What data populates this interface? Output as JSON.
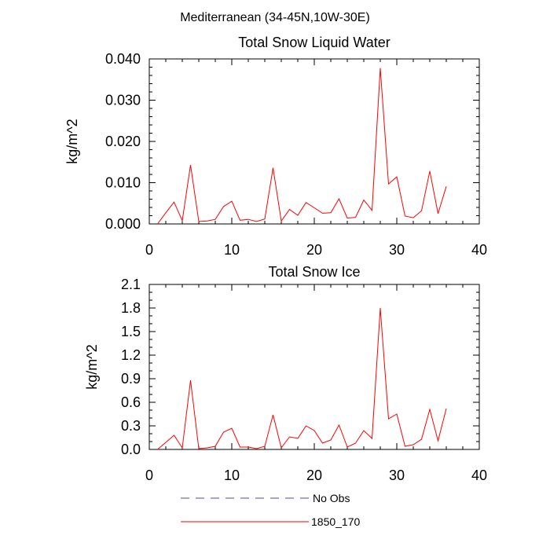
{
  "figure": {
    "title": "Mediterranean (34-45N,10W-30E)"
  },
  "chart_data": [
    {
      "type": "line",
      "title": "Total Snow Liquid Water",
      "xlabel": "",
      "ylabel": "kg/m^2",
      "xlim": [
        0,
        40
      ],
      "ylim": [
        0,
        0.04
      ],
      "x_ticks": [
        "0",
        "10",
        "20",
        "30",
        "40"
      ],
      "y_ticks": [
        "0.000",
        "0.010",
        "0.020",
        "0.030",
        "0.040"
      ],
      "grid": false,
      "series": [
        {
          "name": "1850_170",
          "color": "#ff0000",
          "x": [
            1,
            2,
            3,
            4,
            5,
            6,
            7,
            8,
            9,
            10,
            11,
            12,
            13,
            14,
            15,
            16,
            17,
            18,
            19,
            20,
            21,
            22,
            23,
            24,
            25,
            26,
            27,
            28,
            29,
            30,
            31,
            32,
            33,
            34,
            35,
            36
          ],
          "values": [
            0.0,
            0.0027,
            0.0053,
            0.0008,
            0.0143,
            0.0006,
            0.0007,
            0.0011,
            0.0042,
            0.0055,
            0.0009,
            0.0011,
            0.0006,
            0.0012,
            0.0136,
            0.0007,
            0.0035,
            0.0021,
            0.0052,
            0.0039,
            0.0026,
            0.0027,
            0.0061,
            0.0014,
            0.0016,
            0.0058,
            0.0033,
            0.0378,
            0.0097,
            0.0114,
            0.0019,
            0.0015,
            0.0032,
            0.0128,
            0.0025,
            0.0091
          ]
        }
      ]
    },
    {
      "type": "line",
      "title": "Total Snow Ice",
      "xlabel": "",
      "ylabel": "kg/m^2",
      "xlim": [
        0,
        40
      ],
      "ylim": [
        0,
        2.1
      ],
      "x_ticks": [
        "0",
        "10",
        "20",
        "30",
        "40"
      ],
      "y_ticks": [
        "0.0",
        "0.3",
        "0.6",
        "0.9",
        "1.2",
        "1.5",
        "1.8",
        "2.1"
      ],
      "grid": false,
      "series": [
        {
          "name": "1850_170",
          "color": "#ff0000",
          "x": [
            1,
            2,
            3,
            4,
            5,
            6,
            7,
            8,
            9,
            10,
            11,
            12,
            13,
            14,
            15,
            16,
            17,
            18,
            19,
            20,
            21,
            22,
            23,
            24,
            25,
            26,
            27,
            28,
            29,
            30,
            31,
            32,
            33,
            34,
            35,
            36
          ],
          "values": [
            0.0,
            0.09,
            0.18,
            0.02,
            0.88,
            0.01,
            0.02,
            0.04,
            0.22,
            0.27,
            0.03,
            0.03,
            0.01,
            0.04,
            0.44,
            0.02,
            0.16,
            0.14,
            0.3,
            0.24,
            0.08,
            0.12,
            0.31,
            0.03,
            0.08,
            0.24,
            0.14,
            1.8,
            0.39,
            0.45,
            0.04,
            0.06,
            0.13,
            0.51,
            0.11,
            0.52
          ]
        }
      ]
    }
  ],
  "legend": {
    "placement": "bottom",
    "items": [
      {
        "label": "No Obs",
        "color": "#4b4b9e",
        "style": "dashed"
      },
      {
        "label": "1850_170",
        "color": "#ff0000",
        "style": "solid"
      }
    ]
  }
}
